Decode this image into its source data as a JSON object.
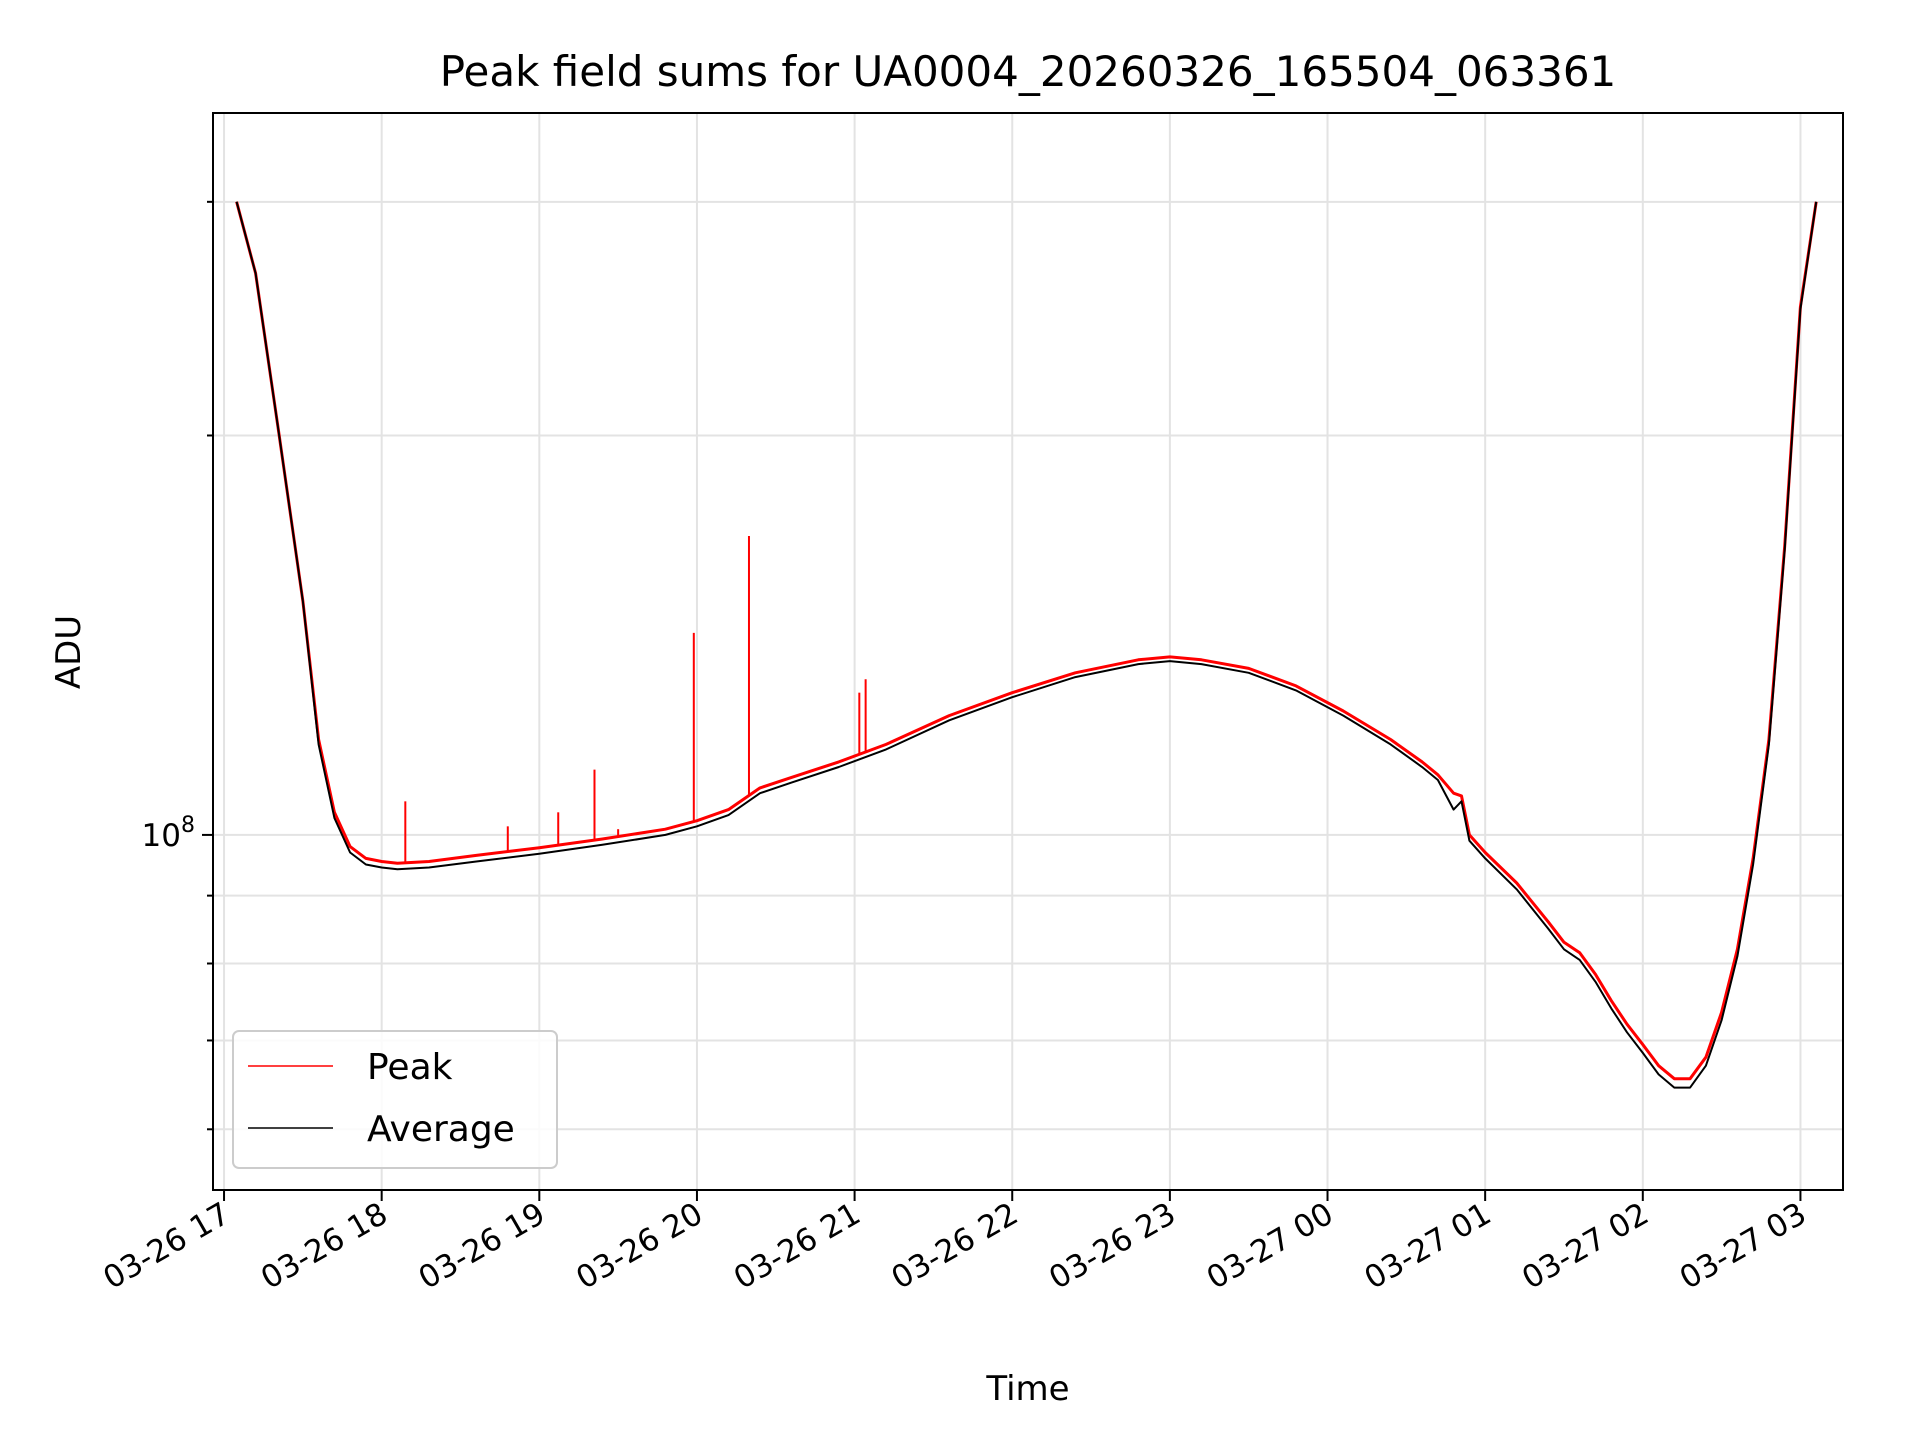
{
  "chart_data": {
    "type": "line",
    "title": "Peak field sums for UA0004_20260326_165504_063361",
    "xlabel": "Time",
    "ylabel": "ADU",
    "yscale": "log",
    "ylim": [
      54000000,
      350000000
    ],
    "xlim_hours": [
      16.93,
      27.27
    ],
    "grid": true,
    "legend_position": "lower-left",
    "x_tick_labels": [
      "03-26 17",
      "03-26 18",
      "03-26 19",
      "03-26 20",
      "03-26 21",
      "03-26 22",
      "03-26 23",
      "03-27 00",
      "03-27 01",
      "03-27 02",
      "03-27 03"
    ],
    "x_tick_hours": [
      17,
      18,
      19,
      20,
      21,
      22,
      23,
      24,
      25,
      26,
      27
    ],
    "y_major_tick_label": {
      "base": "10",
      "exponent": "8",
      "value": 100000000
    },
    "y_minor_ticks": [
      60000000,
      70000000,
      80000000,
      90000000,
      200000000,
      300000000
    ],
    "series": [
      {
        "name": "Peak",
        "color": "#ff0000",
        "x_hours": [
          17.08,
          17.2,
          17.35,
          17.5,
          17.6,
          17.7,
          17.8,
          17.9,
          18.0,
          18.1,
          18.3,
          18.6,
          19.0,
          19.4,
          19.8,
          20.0,
          20.2,
          20.4,
          20.6,
          20.9,
          21.2,
          21.6,
          22.0,
          22.4,
          22.8,
          23.0,
          23.2,
          23.5,
          23.8,
          24.1,
          24.4,
          24.6,
          24.7,
          24.8,
          24.85,
          24.9,
          25.0,
          25.2,
          25.4,
          25.5,
          25.6,
          25.7,
          25.8,
          25.9,
          26.0,
          26.1,
          26.2,
          26.3,
          26.4,
          26.5,
          26.6,
          26.7,
          26.8,
          26.9,
          27.0,
          27.1
        ],
        "values": [
          300000000,
          265000000,
          200000000,
          150000000,
          118000000,
          104000000,
          98000000,
          96000000,
          95500000,
          95200000,
          95500000,
          96500000,
          97800000,
          99300000,
          101000000,
          102500000,
          104500000,
          108500000,
          110500000,
          113500000,
          117000000,
          123000000,
          128000000,
          132500000,
          135500000,
          136200000,
          135500000,
          133500000,
          129500000,
          124000000,
          118000000,
          113500000,
          111000000,
          107500000,
          107000000,
          100000000,
          97000000,
          92000000,
          86000000,
          83000000,
          81500000,
          78500000,
          75000000,
          72000000,
          69500000,
          67000000,
          65500000,
          65500000,
          68000000,
          73500000,
          82000000,
          96000000,
          118000000,
          165000000,
          250000000,
          300000000
        ],
        "spikes": [
          {
            "x_hour": 18.15,
            "value": 106000000
          },
          {
            "x_hour": 18.8,
            "value": 101500000
          },
          {
            "x_hour": 19.12,
            "value": 104000000
          },
          {
            "x_hour": 19.35,
            "value": 112000000
          },
          {
            "x_hour": 19.5,
            "value": 101000000
          },
          {
            "x_hour": 19.98,
            "value": 142000000
          },
          {
            "x_hour": 20.33,
            "value": 168000000
          },
          {
            "x_hour": 21.03,
            "value": 128000000
          },
          {
            "x_hour": 21.07,
            "value": 131000000
          }
        ]
      },
      {
        "name": "Average",
        "color": "#000000",
        "x_hours": [
          17.08,
          17.2,
          17.35,
          17.5,
          17.6,
          17.7,
          17.8,
          17.9,
          18.0,
          18.1,
          18.3,
          18.6,
          19.0,
          19.4,
          19.8,
          20.0,
          20.2,
          20.4,
          20.6,
          20.9,
          21.2,
          21.6,
          22.0,
          22.4,
          22.8,
          23.0,
          23.2,
          23.5,
          23.8,
          24.1,
          24.4,
          24.6,
          24.7,
          24.8,
          24.85,
          24.9,
          25.0,
          25.2,
          25.4,
          25.5,
          25.6,
          25.7,
          25.8,
          25.9,
          26.0,
          26.1,
          26.2,
          26.3,
          26.4,
          26.5,
          26.6,
          26.7,
          26.8,
          26.9,
          27.0,
          27.1
        ],
        "values": [
          300000000,
          265000000,
          200000000,
          150000000,
          117000000,
          103000000,
          97000000,
          95000000,
          94500000,
          94200000,
          94500000,
          95500000,
          96800000,
          98300000,
          100000000,
          101500000,
          103500000,
          107500000,
          109500000,
          112500000,
          116000000,
          122000000,
          127000000,
          131500000,
          134500000,
          135200000,
          134500000,
          132500000,
          128500000,
          123000000,
          117000000,
          112500000,
          110000000,
          104500000,
          106000000,
          99000000,
          96000000,
          91000000,
          85000000,
          82000000,
          80500000,
          77500000,
          74000000,
          71000000,
          68500000,
          66000000,
          64500000,
          64500000,
          67000000,
          72500000,
          81000000,
          95000000,
          117000000,
          164000000,
          249000000,
          300000000
        ]
      }
    ]
  }
}
